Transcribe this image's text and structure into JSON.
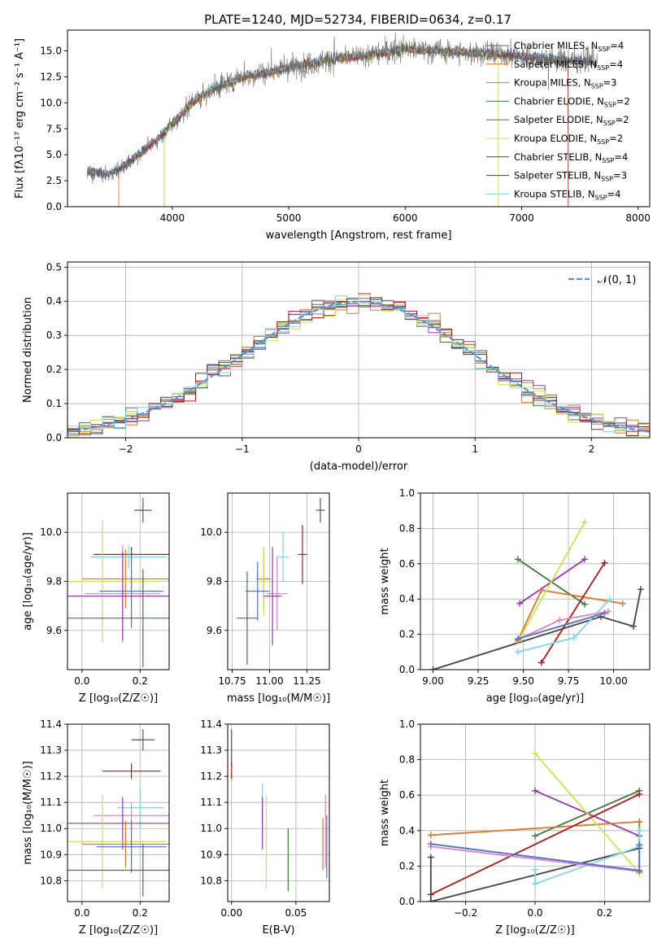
{
  "figure": {
    "title": "PLATE=1240, MJD=52734, FIBERID=0634, z=0.17"
  },
  "legend_entries": [
    {
      "model": "Chabrier MILES",
      "nssp": "4",
      "color": "#5b6a8a"
    },
    {
      "model": "Salpeter MILES",
      "nssp": "4",
      "color": "#e07428"
    },
    {
      "model": "Kroupa MILES",
      "nssp": "3",
      "color": "#b08a3a"
    },
    {
      "model": "Chabrier ELODIE",
      "nssp": "2",
      "color": "#3f7a3f"
    },
    {
      "model": "Salpeter ELODIE",
      "nssp": "2",
      "color": "#9a32b8"
    },
    {
      "model": "Kroupa ELODIE",
      "nssp": "2",
      "color": "#cde34f"
    },
    {
      "model": "Chabrier STELIB",
      "nssp": "4",
      "color": "#444444"
    },
    {
      "model": "Salpeter STELIB",
      "nssp": "3",
      "color": "#b31515"
    },
    {
      "model": "Kroupa STELIB",
      "nssp": "4",
      "color": "#7fd7e3"
    }
  ],
  "legend_prefix": "N",
  "legend_sub": "SSP",
  "chart_data": [
    {
      "id": "spectrum",
      "type": "line",
      "xlabel": "wavelength [Angstrom, rest frame]",
      "ylabel": "Flux [fλ10⁻¹⁷ erg cm⁻² s⁻¹ A⁻¹]",
      "xlim": [
        3100,
        8100
      ],
      "ylim": [
        0,
        17
      ],
      "xticks": [
        4000,
        5000,
        6000,
        7000,
        8000
      ],
      "yticks": [
        0.0,
        2.5,
        5.0,
        7.5,
        10.0,
        12.5,
        15.0
      ],
      "ytick_labels": [
        "0.0",
        "2.5",
        "5.0",
        "7.5",
        "10.0",
        "12.5",
        "15.0"
      ],
      "continuum": {
        "x": [
          3270,
          3450,
          3600,
          3700,
          3850,
          3950,
          4050,
          4200,
          4400,
          4600,
          4800,
          5000,
          5200,
          5400,
          5600,
          5800,
          6000,
          6300,
          6600,
          6900,
          7200,
          7400
        ],
        "y": [
          3.3,
          3.1,
          4.0,
          5.0,
          6.2,
          7.4,
          8.6,
          10.3,
          11.6,
          12.5,
          12.9,
          13.4,
          13.8,
          14.3,
          14.5,
          14.8,
          15.2,
          15.0,
          14.8,
          14.6,
          14.3,
          14.1
        ]
      },
      "model_cutoffs_x": [
        3540,
        3930,
        6800,
        7400
      ],
      "grid": false
    },
    {
      "id": "residuals",
      "type": "histogram",
      "xlabel": "(data-model)/error",
      "ylabel": "Normed distribution",
      "xlim": [
        -2.5,
        2.5
      ],
      "ylim": [
        0,
        0.515
      ],
      "xticks": [
        -2,
        -1,
        0,
        1,
        2
      ],
      "xtick_labels": [
        "−2",
        "−1",
        "0",
        "1",
        "2"
      ],
      "yticks": [
        0.0,
        0.1,
        0.2,
        0.3,
        0.4,
        0.5
      ],
      "ytick_labels": [
        "0.0",
        "0.1",
        "0.2",
        "0.3",
        "0.4",
        "0.5"
      ],
      "bin_width": 0.1,
      "reference_label": "𝒩(0, 1)",
      "reference_color": "#5b8fd6",
      "grid": true
    },
    {
      "id": "z-age",
      "type": "errorbar",
      "xlabel": "Z [log₁₀(Z/Z☉)]",
      "ylabel": "age [log₁₀(age/yr)]",
      "xlim": [
        -0.05,
        0.3
      ],
      "ylim": [
        9.44,
        10.16
      ],
      "xticks": [
        0.0,
        0.2
      ],
      "xtick_labels": [
        "0.0",
        "0.2"
      ],
      "yticks": [
        9.6,
        9.8,
        10.0
      ],
      "ytick_labels": [
        "9.6",
        "9.8",
        "10.0"
      ],
      "points": [
        {
          "x": 0.21,
          "xe": 0.03,
          "y": 10.09,
          "ye": 0.05,
          "c": "#555555"
        },
        {
          "x": 0.17,
          "xe": 0.13,
          "y": 9.91,
          "ye": 0.03,
          "c": "#b31515"
        },
        {
          "x": 0.15,
          "xe": 0.15,
          "y": 9.81,
          "ye": 0.12,
          "c": "#e07428"
        },
        {
          "x": 0.16,
          "xe": 0.13,
          "y": 9.9,
          "ye": 0.05,
          "c": "#7fd7e3"
        },
        {
          "x": 0.07,
          "xe": 0.2,
          "y": 9.8,
          "ye": 0.25,
          "c": "#cde34f"
        },
        {
          "x": 0.17,
          "xe": 0.11,
          "y": 9.76,
          "ye": 0.15,
          "c": "#4f6fd0"
        },
        {
          "x": 0.14,
          "xe": 0.13,
          "y": 9.75,
          "ye": 0.2,
          "c": "#e080c0"
        },
        {
          "x": 0.14,
          "xe": 0.22,
          "y": 9.74,
          "ye": 0.18,
          "c": "#9a32b8"
        },
        {
          "x": 0.21,
          "xe": 0.26,
          "y": 9.65,
          "ye": 0.2,
          "c": "#3f7a3f"
        }
      ],
      "grid": true
    },
    {
      "id": "mass-age",
      "type": "errorbar",
      "xlabel": "mass [log₁₀(M/M☉)]",
      "xlim": [
        10.72,
        11.4
      ],
      "ylim": [
        9.44,
        10.16
      ],
      "xticks": [
        10.75,
        11.0,
        11.25
      ],
      "xtick_labels": [
        "10.75",
        "11.00",
        "11.25"
      ],
      "yticks": [
        9.6,
        9.8,
        10.0
      ],
      "ytick_labels": [
        "9.6",
        "9.8",
        "10.0"
      ],
      "points": [
        {
          "x": 11.34,
          "xe": 0.03,
          "y": 10.09,
          "ye": 0.05,
          "c": "#555555"
        },
        {
          "x": 11.22,
          "xe": 0.03,
          "y": 9.91,
          "ye": 0.12,
          "c": "#b31515"
        },
        {
          "x": 11.09,
          "xe": 0.04,
          "y": 9.9,
          "ye": 0.1,
          "c": "#7fd7e3"
        },
        {
          "x": 10.96,
          "xe": 0.05,
          "y": 9.81,
          "ye": 0.12,
          "c": "#e07428"
        },
        {
          "x": 10.96,
          "xe": 0.04,
          "y": 9.8,
          "ye": 0.14,
          "c": "#cde34f"
        },
        {
          "x": 10.92,
          "xe": 0.08,
          "y": 9.76,
          "ye": 0.12,
          "c": "#4f6fd0"
        },
        {
          "x": 11.05,
          "xe": 0.07,
          "y": 9.75,
          "ye": 0.15,
          "c": "#e080c0"
        },
        {
          "x": 11.02,
          "xe": 0.06,
          "y": 9.74,
          "ye": 0.2,
          "c": "#9a32b8"
        },
        {
          "x": 10.85,
          "xe": 0.07,
          "y": 9.65,
          "ye": 0.19,
          "c": "#3f7a3f"
        }
      ],
      "grid": true
    },
    {
      "id": "age-weight",
      "type": "line",
      "xlabel": "age [log₁₀(age/yr)]",
      "ylabel": "mass weight",
      "xlim": [
        8.93,
        10.2
      ],
      "ylim": [
        0,
        1
      ],
      "xticks": [
        9.0,
        9.25,
        9.5,
        9.75,
        10.0
      ],
      "xtick_labels": [
        "9.00",
        "9.25",
        "9.50",
        "9.75",
        "10.00"
      ],
      "yticks": [
        0.0,
        0.2,
        0.4,
        0.6,
        0.8,
        1.0
      ],
      "ytick_labels": [
        "0.0",
        "0.2",
        "0.4",
        "0.6",
        "0.8",
        "1.0"
      ],
      "series": [
        {
          "c": "#444444",
          "x": [
            9.0,
            9.93,
            10.11,
            10.15
          ],
          "y": [
            0.0,
            0.3,
            0.245,
            0.455
          ]
        },
        {
          "c": "#3f7a3f",
          "x": [
            9.47,
            9.84
          ],
          "y": [
            0.625,
            0.37
          ]
        },
        {
          "c": "#9a32b8",
          "x": [
            9.48,
            9.84
          ],
          "y": [
            0.375,
            0.625
          ]
        },
        {
          "c": "#e07428",
          "x": [
            9.47,
            9.6,
            10.05
          ],
          "y": [
            0.165,
            0.45,
            0.375
          ]
        },
        {
          "c": "#cde34f",
          "x": [
            9.47,
            9.84
          ],
          "y": [
            0.16,
            0.835
          ]
        },
        {
          "c": "#b31515",
          "x": [
            9.6,
            9.95
          ],
          "y": [
            0.04,
            0.605
          ]
        },
        {
          "c": "#7fd7e3",
          "x": [
            9.47,
            9.78,
            9.98
          ],
          "y": [
            0.1,
            0.18,
            0.4
          ]
        },
        {
          "c": "#e080c0",
          "x": [
            9.47,
            9.7,
            9.97
          ],
          "y": [
            0.17,
            0.28,
            0.33
          ]
        },
        {
          "c": "#4f6fd0",
          "x": [
            9.47,
            9.95
          ],
          "y": [
            0.175,
            0.32
          ]
        }
      ],
      "grid": true
    },
    {
      "id": "z-mass",
      "type": "errorbar",
      "xlabel": "Z [log₁₀(Z/Z☉)]",
      "ylabel": "mass [log₁₀(M/M☉)]",
      "xlim": [
        -0.05,
        0.3
      ],
      "ylim": [
        10.72,
        11.4
      ],
      "xticks": [
        0.0,
        0.2
      ],
      "xtick_labels": [
        "0.0",
        "0.2"
      ],
      "yticks": [
        10.8,
        10.9,
        11.0,
        11.1,
        11.2,
        11.3,
        11.4
      ],
      "ytick_labels": [
        "10.8",
        "10.9",
        "11.0",
        "11.1",
        "11.2",
        "11.3",
        "11.4"
      ],
      "points": [
        {
          "x": 0.21,
          "xe": 0.04,
          "y": 11.34,
          "ye": 0.04,
          "c": "#555555"
        },
        {
          "x": 0.17,
          "xe": 0.1,
          "y": 11.22,
          "ye": 0.03,
          "c": "#b31515"
        },
        {
          "x": 0.2,
          "xe": 0.08,
          "y": 11.08,
          "ye": 0.08,
          "c": "#7fd7e3"
        },
        {
          "x": 0.17,
          "xe": 0.13,
          "y": 11.05,
          "ye": 0.05,
          "c": "#e080c0"
        },
        {
          "x": 0.14,
          "xe": 0.22,
          "y": 11.02,
          "ye": 0.1,
          "c": "#9a32b8"
        },
        {
          "x": 0.07,
          "xe": 0.22,
          "y": 10.95,
          "ye": 0.18,
          "c": "#cde34f"
        },
        {
          "x": 0.15,
          "xe": 0.15,
          "y": 10.94,
          "ye": 0.09,
          "c": "#e07428"
        },
        {
          "x": 0.17,
          "xe": 0.12,
          "y": 10.93,
          "ye": 0.1,
          "c": "#4f6fd0"
        },
        {
          "x": 0.21,
          "xe": 0.26,
          "y": 10.84,
          "ye": 0.1,
          "c": "#3f7a3f"
        }
      ],
      "grid": true
    },
    {
      "id": "ebv-mass",
      "type": "errorbar",
      "xlabel": "E(B-V)",
      "xlim": [
        -0.003,
        0.076
      ],
      "ylim": [
        10.72,
        11.4
      ],
      "xticks": [
        0.0,
        0.05
      ],
      "xtick_labels": [
        "0.00",
        "0.05"
      ],
      "yticks": [
        10.8,
        10.9,
        11.0,
        11.1,
        11.2,
        11.3,
        11.4
      ],
      "ytick_labels": [
        "10.8",
        "10.9",
        "11.0",
        "11.1",
        "11.2",
        "11.3",
        "11.4"
      ],
      "points": [
        {
          "x": 0.0,
          "y": 11.31,
          "ye": 0.07,
          "c": "#555555"
        },
        {
          "x": 0.0,
          "y": 11.22,
          "ye": 0.03,
          "c": "#b31515"
        },
        {
          "x": 0.024,
          "y": 11.09,
          "ye": 0.08,
          "c": "#7fd7e3"
        },
        {
          "x": 0.024,
          "y": 11.02,
          "ye": 0.1,
          "c": "#9a32b8"
        },
        {
          "x": 0.027,
          "y": 10.95,
          "ye": 0.18,
          "c": "#cde34f"
        },
        {
          "x": 0.044,
          "y": 10.88,
          "ye": 0.12,
          "c": "#3f7a3f"
        },
        {
          "x": 0.071,
          "y": 10.94,
          "ye": 0.1,
          "c": "#e07428"
        },
        {
          "x": 0.073,
          "y": 10.99,
          "ye": 0.14,
          "c": "#e080c0"
        },
        {
          "x": 0.074,
          "y": 10.93,
          "ye": 0.12,
          "c": "#4f6fd0"
        }
      ],
      "grid": true
    },
    {
      "id": "z-weight",
      "type": "line",
      "xlabel": "Z [log₁₀(Z/Z☉)]",
      "ylabel": "mass weight",
      "xlim": [
        -0.33,
        0.33
      ],
      "ylim": [
        0,
        1
      ],
      "xticks": [
        -0.2,
        0.0,
        0.2
      ],
      "xtick_labels": [
        "−0.2",
        "0.0",
        "0.2"
      ],
      "yticks": [
        0.0,
        0.2,
        0.4,
        0.6,
        0.8,
        1.0
      ],
      "ytick_labels": [
        "0.0",
        "0.2",
        "0.4",
        "0.6",
        "0.8",
        "1.0"
      ],
      "series": [
        {
          "c": "#444444",
          "x": [
            -0.3,
            -0.3,
            0.3,
            0.3
          ],
          "y": [
            0.25,
            0.0,
            0.3,
            0.45
          ]
        },
        {
          "c": "#3f7a3f",
          "x": [
            0.0,
            0.3
          ],
          "y": [
            0.37,
            0.625
          ]
        },
        {
          "c": "#9a32b8",
          "x": [
            0.0,
            0.3
          ],
          "y": [
            0.625,
            0.37
          ]
        },
        {
          "c": "#e07428",
          "x": [
            -0.3,
            0.3,
            0.3
          ],
          "y": [
            0.375,
            0.45,
            0.165
          ]
        },
        {
          "c": "#cde34f",
          "x": [
            0.0,
            0.3
          ],
          "y": [
            0.835,
            0.16
          ]
        },
        {
          "c": "#b31515",
          "x": [
            -0.3,
            0.3
          ],
          "y": [
            0.04,
            0.605
          ]
        },
        {
          "c": "#7fd7e3",
          "x": [
            0.0,
            0.0,
            0.3,
            0.3
          ],
          "y": [
            0.18,
            0.1,
            0.31,
            0.4
          ]
        },
        {
          "c": "#e080c0",
          "x": [
            -0.3,
            0.3
          ],
          "y": [
            0.31,
            0.17
          ]
        },
        {
          "c": "#4f6fd0",
          "x": [
            -0.3,
            0.3,
            0.3
          ],
          "y": [
            0.325,
            0.175,
            0.32
          ]
        }
      ],
      "grid": true
    }
  ]
}
